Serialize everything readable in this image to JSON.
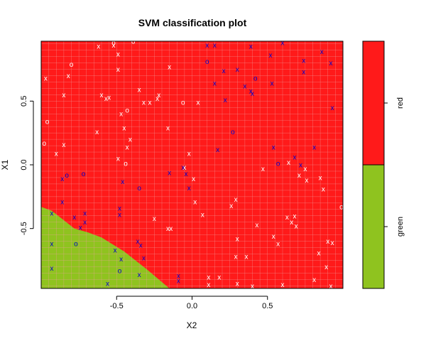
{
  "chart_data": {
    "type": "scatter",
    "title": "SVM classification plot",
    "xlabel": "X2",
    "ylabel": "X1",
    "xlim": [
      -1.0,
      1.0
    ],
    "ylim": [
      -0.97,
      0.97
    ],
    "xticks": [
      "-0.5",
      "0.0",
      "0.5"
    ],
    "yticks": [
      "-0.5",
      "0.0",
      "0.5"
    ],
    "grid": true,
    "colors": {
      "red": "#ff1a1a",
      "green": "#8fc31f",
      "grid": "#f0a0a0",
      "support": "#0000cc",
      "other": "#ffffff"
    },
    "regions": {
      "green_boundary": [
        [
          -1.0,
          -0.33
        ],
        [
          -0.93,
          -0.36
        ],
        [
          -0.78,
          -0.5
        ],
        [
          -0.69,
          -0.53
        ],
        [
          -0.6,
          -0.57
        ],
        [
          -0.45,
          -0.68
        ],
        [
          -0.3,
          -0.82
        ],
        [
          -0.15,
          -0.97
        ]
      ]
    },
    "legend": {
      "labels": [
        "red",
        "green"
      ],
      "colors": [
        "#ff1a1a",
        "#8fc31f"
      ],
      "placement": "right"
    },
    "symbol_legend": {
      "x": "x",
      "o": "o"
    },
    "support_vectors_x": [
      [
        -0.93,
        -0.38
      ],
      [
        -0.93,
        -0.62
      ],
      [
        -0.93,
        -0.81
      ],
      [
        -0.86,
        -0.11
      ],
      [
        -0.86,
        -0.29
      ],
      [
        -0.78,
        -0.41
      ],
      [
        -0.71,
        -0.38
      ],
      [
        -0.71,
        -0.45
      ],
      [
        -0.74,
        -0.49
      ],
      [
        -0.56,
        -0.93
      ],
      [
        -0.51,
        -0.67
      ],
      [
        -0.47,
        -0.74
      ],
      [
        -0.48,
        -0.34
      ],
      [
        -0.48,
        -0.39
      ],
      [
        -0.46,
        -0.13
      ],
      [
        -0.36,
        -0.6
      ],
      [
        -0.34,
        -0.63
      ],
      [
        -0.32,
        -0.73
      ],
      [
        -0.35,
        -0.86
      ],
      [
        -0.15,
        -0.06
      ],
      [
        -0.06,
        -0.02
      ],
      [
        -0.04,
        -0.07
      ],
      [
        -0.02,
        -0.18
      ],
      [
        -0.09,
        -0.87
      ],
      [
        -0.09,
        -0.91
      ],
      [
        0.1,
        0.94
      ],
      [
        0.15,
        0.94
      ],
      [
        0.21,
        0.74
      ],
      [
        0.3,
        0.75
      ],
      [
        0.15,
        0.64
      ],
      [
        0.22,
        0.51
      ],
      [
        0.35,
        0.62
      ],
      [
        0.39,
        0.58
      ],
      [
        0.4,
        0.56
      ],
      [
        0.39,
        0.93
      ],
      [
        0.52,
        0.86
      ],
      [
        0.6,
        0.96
      ],
      [
        0.74,
        0.82
      ],
      [
        0.74,
        0.73
      ],
      [
        0.86,
        0.89
      ],
      [
        0.92,
        0.8
      ],
      [
        0.53,
        0.64
      ],
      [
        0.93,
        0.45
      ],
      [
        0.17,
        0.12
      ],
      [
        0.54,
        0.14
      ],
      [
        0.81,
        0.14
      ],
      [
        0.68,
        0.06
      ],
      [
        0.72,
        0.0
      ]
    ],
    "support_vectors_o": [
      [
        -0.83,
        -0.08
      ],
      [
        -0.72,
        -0.07
      ],
      [
        -0.77,
        -0.62
      ],
      [
        -0.48,
        -0.83
      ],
      [
        -0.35,
        -0.18
      ],
      [
        0.1,
        0.81
      ],
      [
        0.42,
        0.68
      ],
      [
        0.27,
        0.26
      ],
      [
        0.57,
        0.01
      ]
    ],
    "points_x": [
      [
        -0.97,
        0.68
      ],
      [
        -0.85,
        0.55
      ],
      [
        -0.82,
        0.7
      ],
      [
        -0.62,
        0.93
      ],
      [
        -0.6,
        0.55
      ],
      [
        -0.57,
        0.52
      ],
      [
        -0.52,
        0.94
      ],
      [
        -0.49,
        0.87
      ],
      [
        -0.49,
        0.75
      ],
      [
        -0.47,
        0.4
      ],
      [
        -0.35,
        0.59
      ],
      [
        -0.32,
        0.49
      ],
      [
        -0.28,
        0.49
      ],
      [
        -0.23,
        0.52
      ],
      [
        -0.22,
        0.55
      ],
      [
        -0.15,
        0.77
      ],
      [
        -0.16,
        0.29
      ],
      [
        -0.45,
        0.29
      ],
      [
        -0.55,
        0.53
      ],
      [
        -0.63,
        0.26
      ],
      [
        -0.43,
        0.14
      ],
      [
        -0.41,
        0.2
      ],
      [
        -0.49,
        0.05
      ],
      [
        -0.85,
        0.16
      ],
      [
        -0.9,
        0.09
      ],
      [
        -0.02,
        0.09
      ],
      [
        0.04,
        0.49
      ],
      [
        -0.05,
        -0.02
      ],
      [
        0.01,
        -0.11
      ],
      [
        0.02,
        -0.29
      ],
      [
        0.07,
        -0.39
      ],
      [
        -0.14,
        -0.5
      ],
      [
        -0.16,
        -0.5
      ],
      [
        -0.25,
        -0.42
      ],
      [
        0.26,
        -0.32
      ],
      [
        0.29,
        -0.27
      ],
      [
        0.3,
        -0.58
      ],
      [
        0.29,
        -0.72
      ],
      [
        0.36,
        -0.72
      ],
      [
        0.43,
        -0.47
      ],
      [
        0.47,
        -0.03
      ],
      [
        0.54,
        -0.56
      ],
      [
        0.57,
        -0.62
      ],
      [
        0.63,
        -0.41
      ],
      [
        0.66,
        -0.45
      ],
      [
        0.68,
        -0.4
      ],
      [
        0.69,
        -0.48
      ],
      [
        0.71,
        -0.08
      ],
      [
        0.76,
        -0.12
      ],
      [
        0.85,
        -0.1
      ],
      [
        0.87,
        -0.19
      ],
      [
        0.9,
        -0.6
      ],
      [
        0.93,
        -0.61
      ],
      [
        0.84,
        -0.69
      ],
      [
        0.89,
        -0.8
      ],
      [
        0.92,
        -0.95
      ],
      [
        0.81,
        -0.9
      ],
      [
        0.11,
        -0.88
      ],
      [
        0.11,
        -0.94
      ],
      [
        0.18,
        -0.88
      ],
      [
        0.3,
        -0.93
      ],
      [
        0.4,
        -0.95
      ],
      [
        0.6,
        -0.94
      ],
      [
        0.64,
        0.02
      ],
      [
        0.75,
        -0.03
      ]
    ],
    "points_o": [
      [
        -0.96,
        0.34
      ],
      [
        -0.98,
        0.17
      ],
      [
        -0.8,
        0.79
      ],
      [
        -0.52,
        0.96
      ],
      [
        -0.43,
        0.43
      ],
      [
        -0.44,
        0.01
      ],
      [
        -0.06,
        0.49
      ],
      [
        0.99,
        -0.33
      ],
      [
        -0.39,
        0.97
      ]
    ]
  }
}
